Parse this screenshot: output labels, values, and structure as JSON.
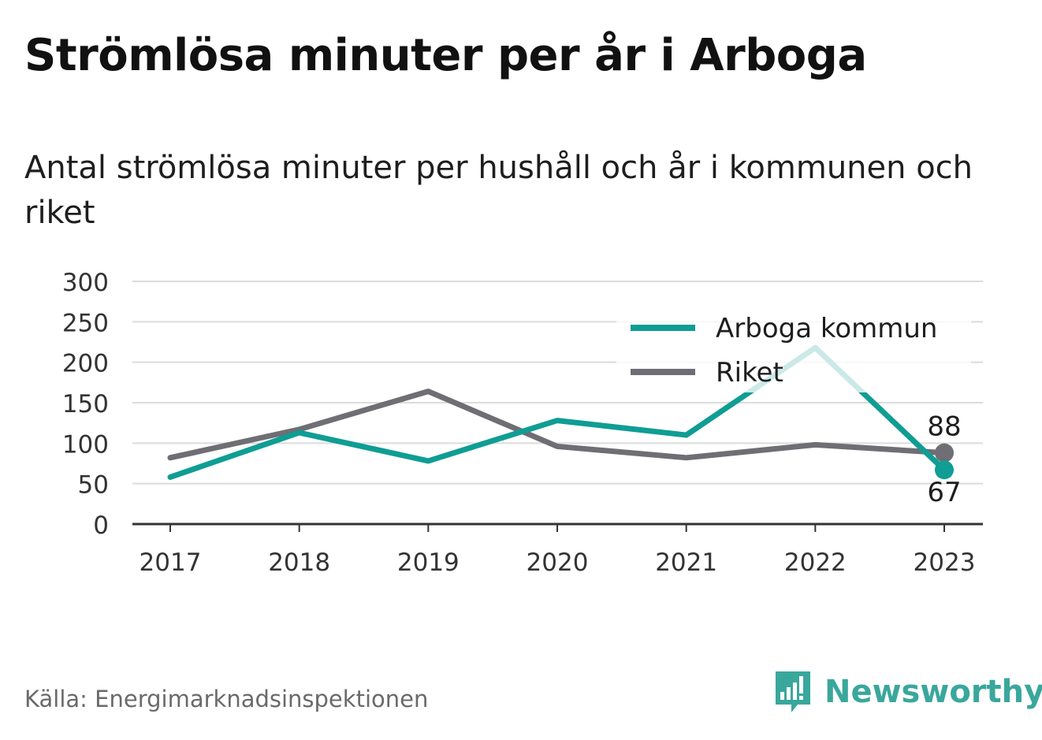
{
  "title": "Strömlösa minuter per år i Arboga",
  "subtitle": "Antal strömlösa minuter per hushåll och år i kommunen och riket",
  "source": "Källa: Energimarknadsinspektionen",
  "brand": {
    "name": "Newsworthy",
    "color": "#3aa79c"
  },
  "chart_data": {
    "type": "line",
    "categories": [
      "2017",
      "2018",
      "2019",
      "2020",
      "2021",
      "2022",
      "2023"
    ],
    "ylim": [
      0,
      300
    ],
    "yticks": [
      0,
      50,
      100,
      150,
      200,
      250,
      300
    ],
    "grid": true,
    "legend_position": "top-right",
    "series": [
      {
        "name": "Arboga kommun",
        "color": "#0f9d94",
        "values": [
          58,
          113,
          78,
          128,
          110,
          218,
          67
        ]
      },
      {
        "name": "Riket",
        "color": "#6e6e74",
        "values": [
          82,
          117,
          164,
          96,
          82,
          98,
          88
        ]
      }
    ],
    "end_labels": [
      {
        "series": "Riket",
        "text": "88"
      },
      {
        "series": "Arboga kommun",
        "text": "67"
      }
    ]
  }
}
